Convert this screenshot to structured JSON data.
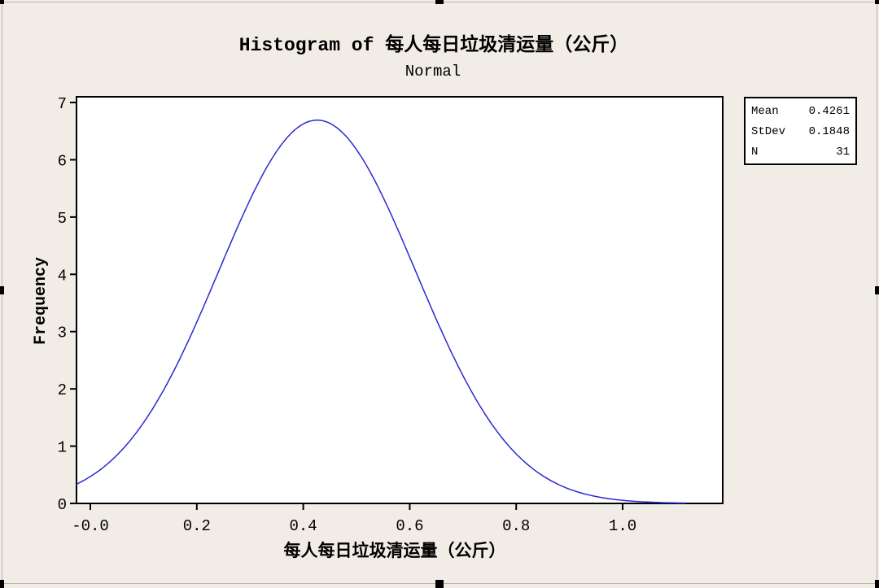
{
  "chart_data": {
    "type": "line",
    "title": "Histogram of 每人每日垃圾清运量（公斤）",
    "subtitle": "Normal",
    "xlabel": "每人每日垃圾清运量（公斤）",
    "ylabel": "Frequency",
    "xlim": [
      -0.026,
      1.188
    ],
    "ylim": [
      0,
      7.1
    ],
    "xticks": [
      "-0.0",
      "0.2",
      "0.4",
      "0.6",
      "0.8",
      "1.0"
    ],
    "xtick_values": [
      0.0,
      0.2,
      0.4,
      0.6,
      0.8,
      1.0
    ],
    "yticks": [
      "0",
      "1",
      "2",
      "3",
      "4",
      "5",
      "6",
      "7"
    ],
    "yticks_values": [
      0,
      1,
      2,
      3,
      4,
      5,
      6,
      7
    ],
    "grid": false,
    "series": [
      {
        "distribution": "normal",
        "mean": 0.4261,
        "stdev": 0.1848,
        "n": 31,
        "bin_width": 0.1,
        "x_range": [
          -0.026,
          1.12
        ],
        "color": "#2a2ad0"
      }
    ],
    "stats": [
      {
        "label": "Mean",
        "value": "0.4261"
      },
      {
        "label": "StDev",
        "value": "0.1848"
      },
      {
        "label": "N",
        "value": "31"
      }
    ]
  }
}
